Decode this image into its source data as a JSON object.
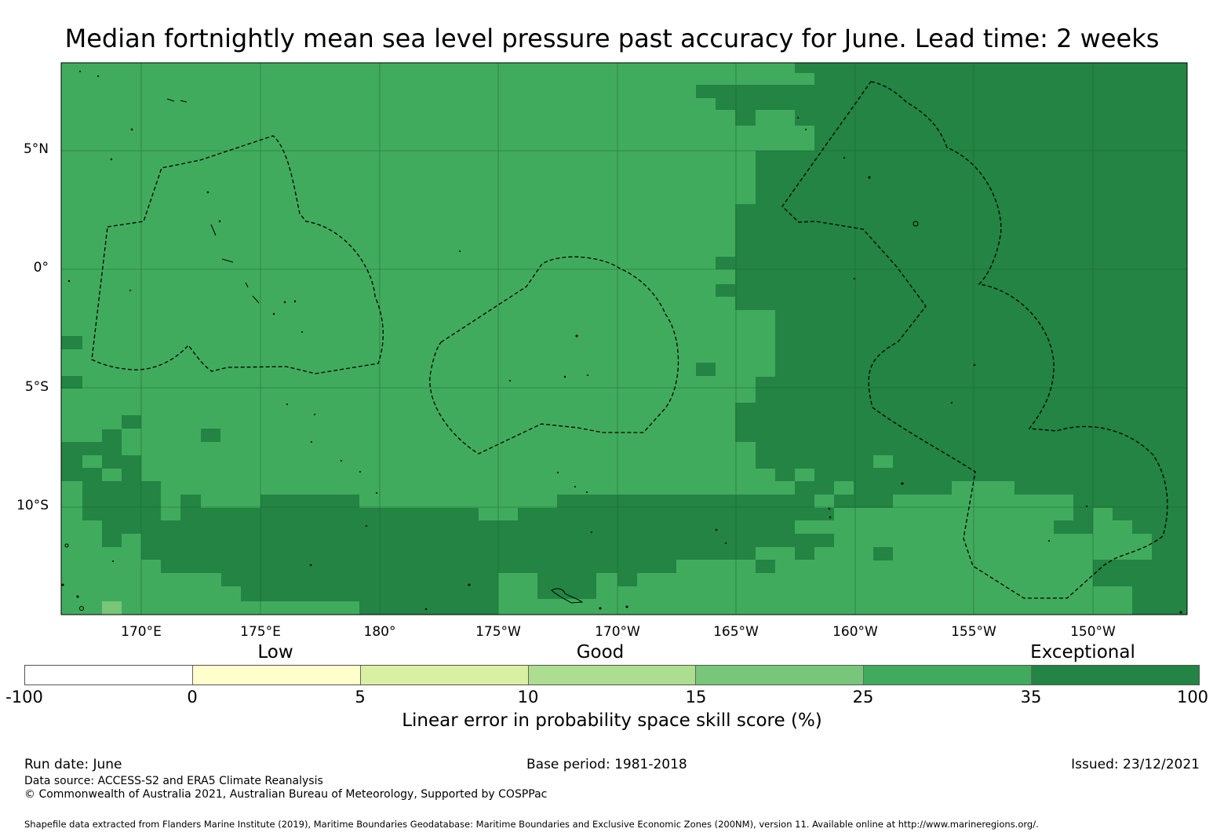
{
  "title": "Median fortnightly mean sea level pressure past accuracy for June. Lead time: 2 weeks",
  "axes": {
    "lat_labels": [
      "5°N",
      "0°",
      "5°S",
      "10°S"
    ],
    "lon_labels": [
      "170°E",
      "175°E",
      "180°",
      "175°W",
      "170°W",
      "165°W",
      "160°W",
      "155°W",
      "150°W"
    ]
  },
  "legend": {
    "categories": [
      "Low",
      "Good",
      "Exceptional"
    ],
    "ticks": [
      "-100",
      "0",
      "5",
      "10",
      "15",
      "25",
      "35",
      "100"
    ],
    "colors": [
      "#ffffff",
      "#ffffcc",
      "#d9f0a3",
      "#addd8e",
      "#78c679",
      "#41ab5d",
      "#238443"
    ],
    "title": "Linear error in probability space skill score (%)"
  },
  "colors": {
    "good_green": "#41ab5d",
    "exceptional_green": "#238443",
    "light_green": "#78c679"
  },
  "footer": {
    "run_date": "Run date: June",
    "base_period": "Base period: 1981-2018",
    "issued": "Issued: 23/12/2021",
    "data_source": "Data source: ACCESS-S2 and ERA5 Climate Reanalysis",
    "copyright": "© Commonwealth of Australia 2021, Australian Bureau of Meteorology, Supported by COSPPac",
    "shapefile": "Shapefile data extracted from Flanders Marine Institute (2019), Maritime Boundaries Geodatabase: Maritime Boundaries and Exclusive Economic Zones (200NM), version 11. Available online at http://www.marineregions.org/."
  }
}
